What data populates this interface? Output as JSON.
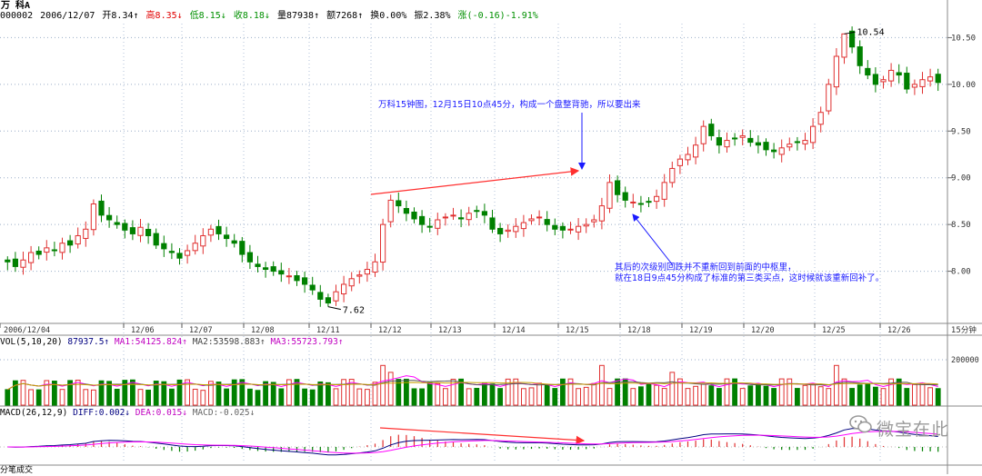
{
  "header": {
    "stock_name": "万  科A",
    "code": "000002",
    "date": "2006/12/07",
    "open": "开8.34↑",
    "high": "高8.35↓",
    "low": "低8.15↓",
    "close": "收8.18↓",
    "volume": "量87938↑",
    "amount": "额7268↑",
    "turnover": "换0.00%",
    "amplitude": "振2.38%",
    "change": "涨(-0.16)-1.91%"
  },
  "price_axis_labels": [
    "10.50",
    "10.00",
    "9.50",
    "9.00",
    "8.50",
    "8.00"
  ],
  "time_axis_labels": [
    "2006/12/04",
    "12/06",
    "12/07",
    "12/08",
    "12/11",
    "12/12",
    "12/13",
    "12/14",
    "12/15",
    "12/18",
    "12/19",
    "12/20",
    "12/25",
    "12/26"
  ],
  "period_label": "15分钟",
  "vol_indicator": {
    "name": "VOL(5,10,20)",
    "v": "87937.5↑",
    "ma1": "MA1:54125.824↑",
    "ma2": "MA2:53598.883↑",
    "ma3": "MA3:55723.793↑",
    "axis_label": "200000"
  },
  "macd_indicator": {
    "name": "MACD(26,12,9)",
    "diff": "DIFF:0.002↓",
    "dea": "DEA:0.015↓",
    "macd": "MACD:-0.025↓"
  },
  "bottom_label": "分笔成交",
  "annotations": {
    "top_note": "万科15钟图，12月15日10点45分，构成一个盘整背驰，所以要出来",
    "bottom_note_line1": "其后的次级别回跌并不重新回到前面的中枢里，",
    "bottom_note_line2": "就在18日9点45分构成了标准的第三类买点，这时候就该重新回补了。",
    "high_label": "10.54",
    "low_label": "7.62"
  },
  "watermark": "微宝在此",
  "colors": {
    "up": "#e03030",
    "down": "#008000",
    "annotation": "#1a1aff",
    "arrow": "#ff3030",
    "ma_white": "#555555",
    "ma_mag": "#ff00ff",
    "ma_yellow": "#c8a000",
    "diff": "#000080",
    "dea": "#ff00ff"
  },
  "chart_data": {
    "type": "candlestick",
    "title": "",
    "ylim": [
      7.5,
      10.65
    ],
    "yticks": [
      8.0,
      8.5,
      9.0,
      9.5,
      10.0,
      10.5
    ],
    "x": [
      "2006/12/04",
      "12/06",
      "12/07",
      "12/08",
      "12/11",
      "12/12",
      "12/13",
      "12/14",
      "12/15",
      "12/18",
      "12/19",
      "12/20",
      "12/25",
      "12/26"
    ],
    "close_series": [
      8.1,
      8.05,
      8.12,
      8.2,
      8.18,
      8.25,
      8.22,
      8.3,
      8.28,
      8.38,
      8.45,
      8.72,
      8.6,
      8.55,
      8.5,
      8.44,
      8.4,
      8.47,
      8.38,
      8.28,
      8.24,
      8.2,
      8.14,
      8.22,
      8.3,
      8.38,
      8.45,
      8.4,
      8.35,
      8.3,
      8.18,
      8.1,
      8.05,
      8.02,
      8.0,
      7.97,
      7.95,
      7.9,
      7.86,
      7.8,
      7.7,
      7.66,
      7.78,
      7.86,
      7.92,
      7.96,
      8.02,
      8.1,
      8.5,
      8.76,
      8.7,
      8.62,
      8.56,
      8.5,
      8.48,
      8.55,
      8.58,
      8.6,
      8.56,
      8.62,
      8.64,
      8.6,
      8.45,
      8.4,
      8.44,
      8.48,
      8.52,
      8.56,
      8.58,
      8.5,
      8.45,
      8.44,
      8.45,
      8.48,
      8.5,
      8.55,
      8.7,
      8.95,
      8.82,
      8.76,
      8.74,
      8.72,
      8.74,
      8.8,
      8.95,
      9.1,
      9.2,
      9.25,
      9.35,
      9.55,
      9.45,
      9.35,
      9.4,
      9.42,
      9.45,
      9.38,
      9.35,
      9.3,
      9.28,
      9.32,
      9.36,
      9.38,
      9.4,
      9.55,
      9.7,
      10.0,
      10.3,
      10.54,
      10.4,
      10.2,
      10.1,
      10.0,
      10.05,
      10.15,
      10.1,
      9.95,
      10.0,
      10.05,
      10.08,
      10.02
    ],
    "bottom_fractal_low": 7.62,
    "top_fractal_high": 10.54,
    "volume_axis": {
      "ytick": 200000
    },
    "macd": {
      "type": "histogram+lines",
      "lines": [
        "DIFF",
        "DEA"
      ]
    }
  }
}
